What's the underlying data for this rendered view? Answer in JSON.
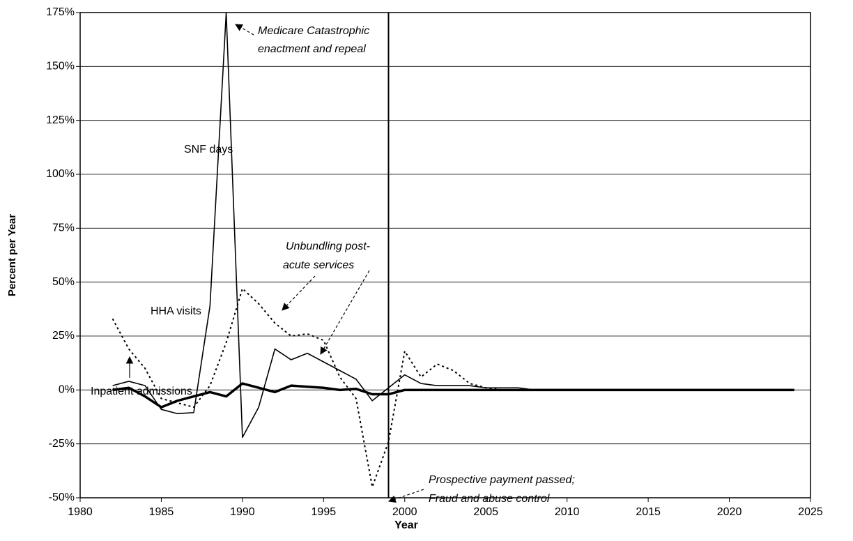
{
  "chart_data": {
    "type": "line",
    "x": [
      1982,
      1983,
      1984,
      1985,
      1986,
      1987,
      1988,
      1989,
      1990,
      1991,
      1992,
      1993,
      1994,
      1995,
      1996,
      1997,
      1998,
      1999,
      2000,
      2001,
      2002,
      2003,
      2004,
      2005,
      2006,
      2007,
      2008,
      2009,
      2010,
      2011,
      2012,
      2013,
      2014,
      2015,
      2016,
      2017,
      2018,
      2019,
      2020,
      2021,
      2022,
      2023,
      2024
    ],
    "series": [
      {
        "name": "SNF days",
        "color": "#000000",
        "style": "solid",
        "width": 1.6,
        "values": [
          2,
          4,
          2,
          -9,
          -11,
          -10.5,
          39,
          175,
          -22,
          -8,
          19,
          14,
          17,
          13,
          9,
          5,
          -5,
          1,
          7,
          3,
          2,
          2,
          2,
          1,
          1,
          1,
          0,
          0,
          0,
          0,
          0,
          0,
          0,
          0,
          0,
          0,
          0,
          0,
          0,
          0,
          0,
          0,
          0
        ]
      },
      {
        "name": "HHA visits",
        "color": "#000000",
        "style": "dotted",
        "width": 2,
        "values": [
          33,
          19,
          10,
          -4,
          -6,
          -8,
          2,
          22,
          47,
          40,
          31,
          25,
          26,
          23,
          6,
          -4,
          -45,
          -24,
          18,
          6,
          12,
          9,
          3,
          1,
          0,
          0,
          0,
          0,
          0,
          0,
          0,
          0,
          0,
          0,
          0,
          0,
          0,
          0,
          0,
          0,
          0,
          0,
          0
        ]
      },
      {
        "name": "Inpatient admissions",
        "color": "#000000",
        "style": "solid",
        "width": 3.5,
        "values": [
          0,
          1,
          -3,
          -8,
          -5,
          -3,
          -1,
          -3,
          3,
          1,
          -1,
          2,
          1.5,
          1,
          0,
          0.5,
          -2,
          -2,
          0,
          0,
          0,
          0,
          0,
          0,
          0,
          0,
          0,
          0,
          0,
          0,
          0,
          0,
          0,
          0,
          0,
          0,
          0,
          0,
          0,
          0,
          0,
          0,
          0
        ]
      }
    ],
    "x_label": "Year",
    "y_label": "Percent per Year",
    "xlim": [
      1980,
      2025
    ],
    "xticks": [
      1980,
      1985,
      1990,
      1995,
      2000,
      2005,
      2010,
      2015,
      2020,
      2025
    ],
    "ylim": [
      -50,
      175
    ],
    "yticks": [
      {
        "value": -50,
        "label": "-50%"
      },
      {
        "value": -25,
        "label": "-25%"
      },
      {
        "value": 0,
        "label": "0%"
      },
      {
        "value": 25,
        "label": "25%"
      },
      {
        "value": 50,
        "label": "50%"
      },
      {
        "value": 75,
        "label": "75%"
      },
      {
        "value": 100,
        "label": "100%"
      },
      {
        "value": 125,
        "label": "125%"
      },
      {
        "value": 150,
        "label": "150%"
      },
      {
        "value": 175,
        "label": "175%"
      }
    ],
    "grid": true,
    "reference_x": 1999,
    "annotations": [
      {
        "lines": [
          "Medicare Catastrophic",
          "enactment and repeal"
        ]
      },
      {
        "lines": [
          "Unbundling post-",
          "acute services"
        ]
      },
      {
        "lines": [
          "Prospective payment passed;",
          "Fraud and abuse control"
        ]
      }
    ]
  }
}
